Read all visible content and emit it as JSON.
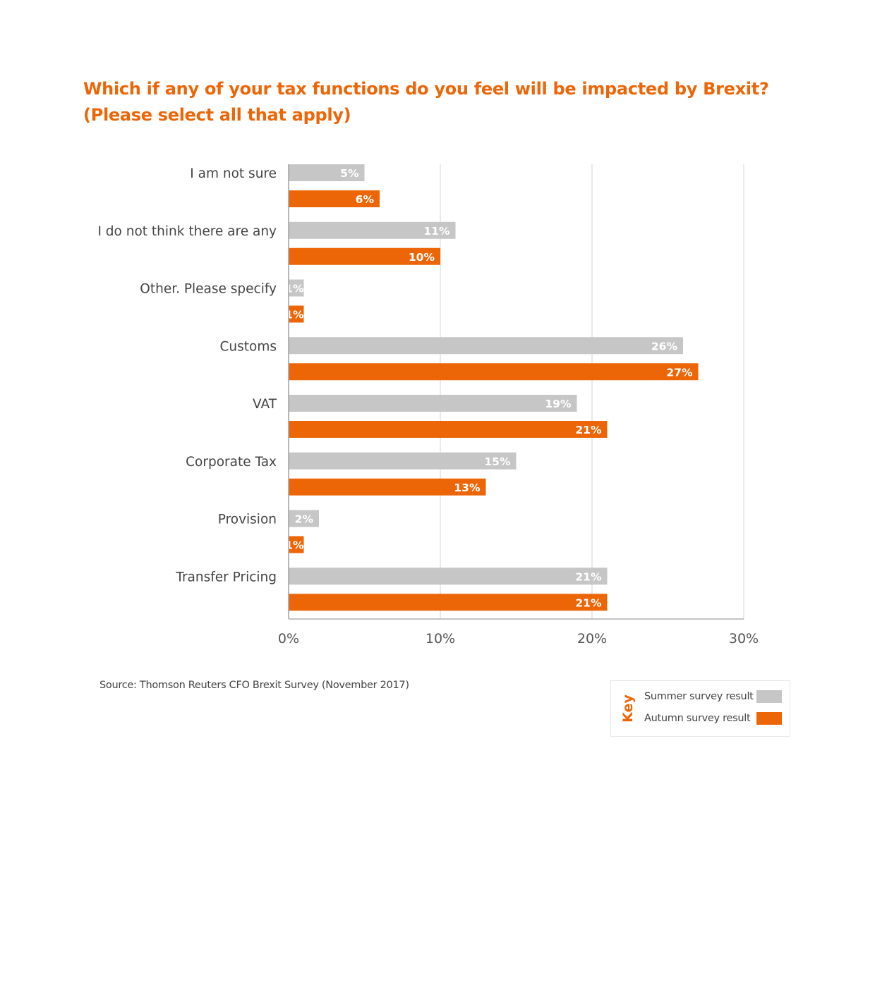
{
  "chart_data": {
    "type": "bar",
    "orientation": "horizontal",
    "title": [
      "Which if any of your tax functions do you feel will be impacted by Brexit?",
      "(Please select all that apply)"
    ],
    "categories": [
      "I am not sure",
      "I do not think there are any",
      "Other. Please specify",
      "Customs",
      "VAT",
      "Corporate Tax",
      "Provision",
      "Transfer Pricing"
    ],
    "series": [
      {
        "name": "Summer survey result",
        "color": "#c6c6c6",
        "values": [
          5,
          11,
          1,
          26,
          19,
          15,
          2,
          21
        ]
      },
      {
        "name": "Autumn survey result",
        "color": "#ec6608",
        "values": [
          6,
          10,
          1,
          27,
          21,
          13,
          1,
          21
        ]
      }
    ],
    "xlim": [
      0,
      30
    ],
    "xticks": [
      "0%",
      "10%",
      "20%",
      "30%"
    ],
    "value_suffix": "%",
    "grid": "vertical",
    "legend": {
      "title": "Key",
      "placement": "bottom-right"
    },
    "source": "Source: Thomson Reuters CFO Brexit Survey (November 2017)"
  }
}
